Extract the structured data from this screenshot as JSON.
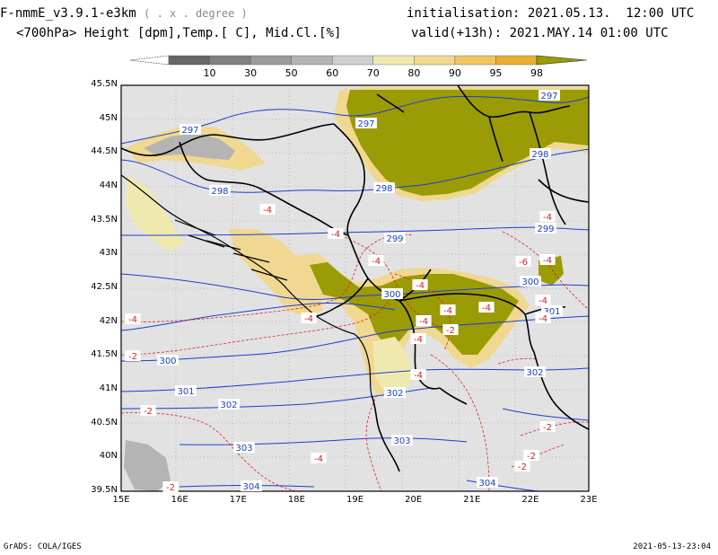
{
  "header": {
    "model": "F-nmmE_v3.9.1-e3km",
    "unit": "( . x . degree )",
    "vars": "<700hPa> Height [dpm],Temp.[ C], Mid.Cl.[%]",
    "init": "initialisation: 2021.05.13.  12:00 UTC",
    "valid": "valid(+13h): 2021.MAY.14 01:00 UTC"
  },
  "colorbar": {
    "labels": [
      "10",
      "30",
      "50",
      "60",
      "70",
      "80",
      "90",
      "95",
      "98"
    ],
    "colors": [
      "#666666",
      "#808080",
      "#9a9a9a",
      "#b4b4b4",
      "#cfcfcf",
      "#efe9b0",
      "#f0d890",
      "#f0c460",
      "#e8b030"
    ],
    "end_color": "#9b9b05"
  },
  "axes": {
    "lat_labels": [
      "45.5N",
      "45N",
      "44.5N",
      "44N",
      "43.5N",
      "43N",
      "42.5N",
      "42N",
      "41.5N",
      "41N",
      "40.5N",
      "40N",
      "39.5N"
    ],
    "lon_labels": [
      "15E",
      "16E",
      "17E",
      "18E",
      "19E",
      "20E",
      "21E",
      "22E",
      "23E"
    ]
  },
  "height_labels": [
    "297",
    "297",
    "297",
    "298",
    "298",
    "298",
    "299",
    "299",
    "300",
    "300",
    "300",
    "301",
    "301",
    "302",
    "302",
    "302",
    "303",
    "303",
    "304",
    "304"
  ],
  "temp_labels": [
    "-4",
    "-4",
    "-4",
    "-4",
    "-4",
    "-4",
    "-4",
    "-4",
    "-4",
    "-4",
    "-6",
    "-4",
    "-4",
    "-4",
    "-4",
    "-4",
    "-2",
    "-2",
    "-2",
    "-2",
    "-2",
    "-2",
    "-4",
    "-2"
  ],
  "footer": {
    "left": "GrADS: COLA/IGES",
    "right": "2021-05-13-23:04"
  },
  "colors": {
    "land": "#e2e2e2",
    "sea": "#e2e2e2",
    "cloud_high": "#9b9b05",
    "height_contour": "#1a3fd0",
    "temp_contour": "#e02020",
    "border": "#000000"
  }
}
